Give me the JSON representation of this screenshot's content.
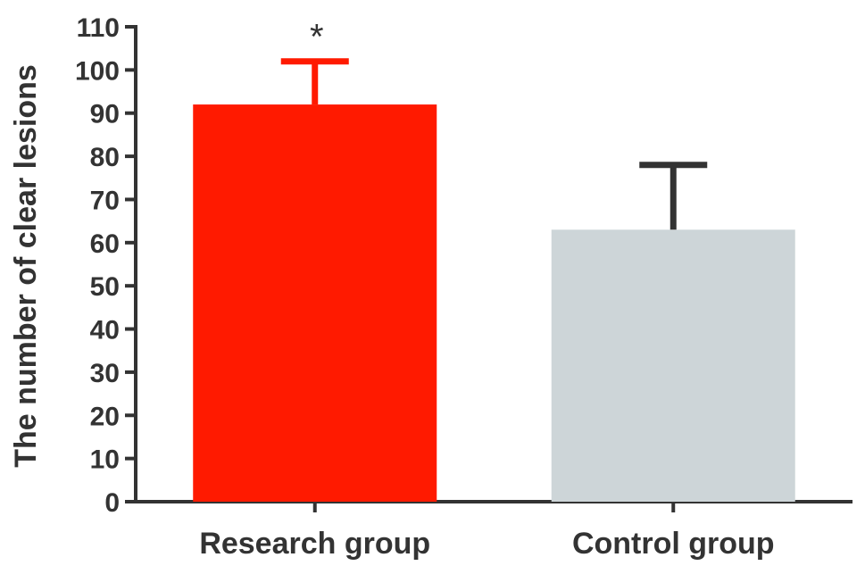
{
  "chart_data": {
    "type": "bar",
    "ylabel": "The number of clear lesions",
    "xlabel": "",
    "title": "",
    "ylim": [
      0,
      110
    ],
    "yticks": [
      0,
      10,
      20,
      30,
      40,
      50,
      60,
      70,
      80,
      90,
      100,
      110
    ],
    "grid": false,
    "categories": [
      "Research group",
      "Control group"
    ],
    "values": [
      92,
      63
    ],
    "error_upper": [
      102,
      78
    ],
    "colors": [
      "#ff1a00",
      "#cdd5d8"
    ],
    "error_colors": [
      "#ff1a00",
      "#333333"
    ],
    "annotations": [
      "*",
      ""
    ]
  }
}
